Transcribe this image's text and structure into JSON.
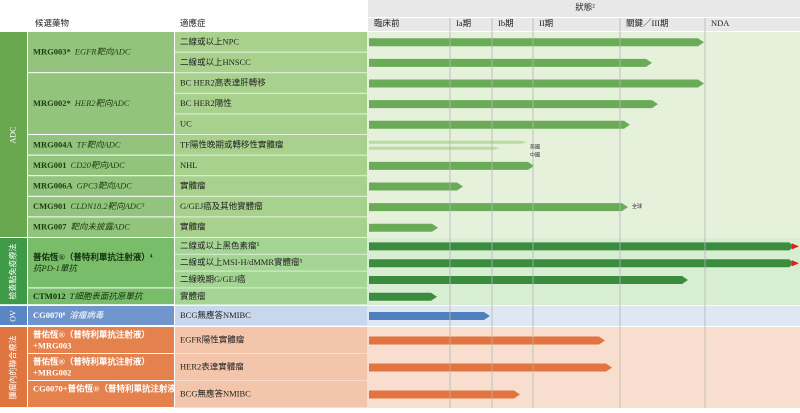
{
  "header": {
    "drug": "候選藥物",
    "indication": "適應症",
    "status": "狀態²",
    "phases": [
      "臨床前",
      "Ia期",
      "Ib期",
      "II期",
      "關鍵／III期",
      "NDA"
    ]
  },
  "groups": [
    {
      "label": "ADC",
      "rows": [
        {
          "drug": "MRG003*",
          "target": "EGFR靶向ADC",
          "indications": [
            "二線或以上NPC",
            "二線或以上HNSCC"
          ]
        },
        {
          "drug": "MRG002*",
          "target": "HER2靶向ADC",
          "indications": [
            "BC HER2高表達肝轉移",
            "BC HER2陽性",
            "UC"
          ]
        },
        {
          "drug": "MRG004A",
          "target": "TF靶向ADC",
          "indications": [
            "TF陽性晚期或轉移性實體瘤"
          ],
          "notes": [
            "美國",
            "中國"
          ]
        },
        {
          "drug": "MRG001",
          "target": "CD20靶向ADC",
          "indications": [
            "NHL"
          ]
        },
        {
          "drug": "MRG006A",
          "target": "GPC3靶向ADC",
          "indications": [
            "實體瘤"
          ]
        },
        {
          "drug": "CMG901",
          "target": "CLDN18.2靶向ADC³",
          "indications": [
            "G/GEJ癌及其他實體瘤"
          ],
          "notes": [
            "全球"
          ]
        },
        {
          "drug": "MRG007",
          "target": "靶向未披露ADC",
          "indications": [
            "實體瘤"
          ]
        }
      ]
    },
    {
      "label": "檢查點免疫療法",
      "rows": [
        {
          "drug": "普佑恆®（普特利單抗注射液）⁴",
          "target": "抗PD-1單抗",
          "indications": [
            "二線或以上黑色素瘤⁵",
            "二線或以上MSI-H/dMMR實體瘤⁵",
            "二線晚期G/GEJ癌"
          ]
        },
        {
          "drug": "CTM012",
          "target": "T細胞表面抗原單抗",
          "indications": [
            "實體瘤"
          ]
        }
      ]
    },
    {
      "label": "OV",
      "rows": [
        {
          "drug": "CG0070⁶",
          "target": "溶瘤病毒",
          "indications": [
            "BCG無應答NMIBC"
          ]
        }
      ]
    },
    {
      "label": "腫瘤內的聯合療法",
      "rows": [
        {
          "drug": "普佑恆®（普特利單抗注射液）+MRG003",
          "indications": [
            "EGFR陽性實體瘤"
          ]
        },
        {
          "drug": "普佑恆®（普特利單抗注射液）+MRG002",
          "indications": [
            "HER2表達實體瘤"
          ]
        },
        {
          "drug": "CG0070+普佑恆®（普特利單抗注射液）",
          "indications": [
            "BCG無應答NMIBC"
          ]
        }
      ]
    }
  ]
}
